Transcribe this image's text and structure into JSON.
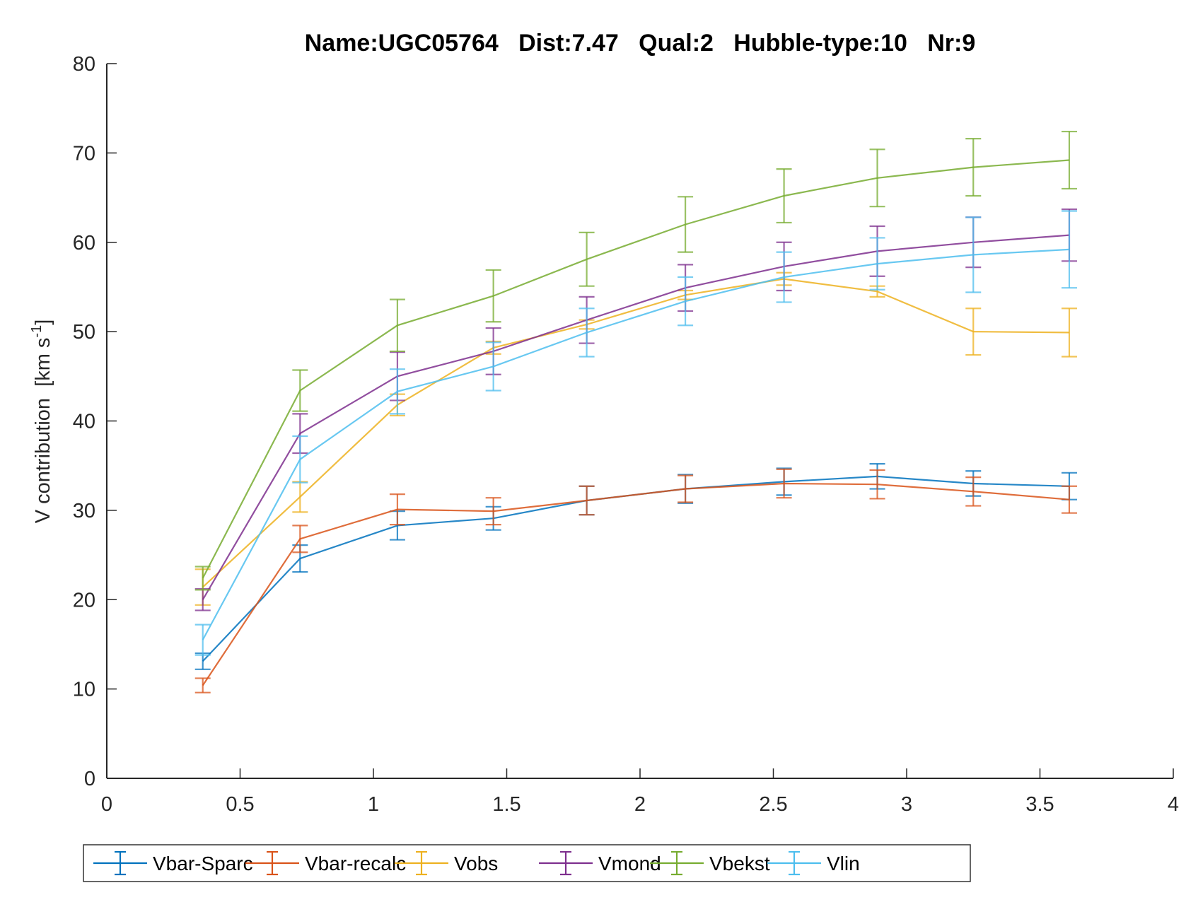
{
  "chart_data": {
    "type": "line",
    "title": "Name:UGC05764   Dist:7.47   Qual:2   Hubble-type:10   Nr:9",
    "title_fields": {
      "name": "UGC05764",
      "dist": "7.47",
      "qual": "2",
      "hubble_type": "10",
      "nr": "9"
    },
    "xlabel": "",
    "ylabel": "V contribution  [km s^-1]",
    "ylabel_parts": {
      "main": "V contribution  [km s",
      "sup": "-1",
      "close": "]"
    },
    "xlim": [
      0,
      4
    ],
    "ylim": [
      0,
      80
    ],
    "xticks": [
      0,
      0.5,
      1,
      1.5,
      2,
      2.5,
      3,
      3.5,
      4
    ],
    "xtick_labels": [
      "0",
      "0.5",
      "1",
      "1.5",
      "2",
      "2.5",
      "3",
      "3.5",
      "4"
    ],
    "yticks": [
      0,
      10,
      20,
      30,
      40,
      50,
      60,
      70,
      80
    ],
    "ytick_labels": [
      "0",
      "10",
      "20",
      "30",
      "40",
      "50",
      "60",
      "70",
      "80"
    ],
    "grid": false,
    "legend_position": "bottom-outside",
    "x": [
      0.36,
      0.725,
      1.09,
      1.45,
      1.8,
      2.17,
      2.54,
      2.89,
      3.25,
      3.61
    ],
    "series": [
      {
        "name": "Vbar-Sparc",
        "color": "#0072BD",
        "values": [
          13.1,
          24.6,
          28.3,
          29.1,
          31.1,
          32.4,
          33.2,
          33.8,
          33.0,
          32.7
        ],
        "errors": [
          0.9,
          1.5,
          1.6,
          1.3,
          1.6,
          1.6,
          1.5,
          1.4,
          1.4,
          1.5
        ]
      },
      {
        "name": "Vbar-recalc",
        "color": "#D95319",
        "values": [
          10.4,
          26.8,
          30.1,
          29.9,
          31.1,
          32.4,
          33.0,
          32.9,
          32.1,
          31.2
        ],
        "errors": [
          0.8,
          1.5,
          1.7,
          1.5,
          1.6,
          1.5,
          1.6,
          1.6,
          1.6,
          1.5
        ]
      },
      {
        "name": "Vobs",
        "color": "#EDB120",
        "values": [
          21.4,
          31.5,
          41.8,
          48.2,
          50.8,
          54.1,
          55.9,
          54.5,
          50.0,
          49.9
        ],
        "errors": [
          2.0,
          1.7,
          1.2,
          0.7,
          0.5,
          0.5,
          0.7,
          0.6,
          2.6,
          2.7
        ]
      },
      {
        "name": "Vmond",
        "color": "#7E2F8E",
        "values": [
          20.0,
          38.6,
          45.0,
          47.8,
          51.3,
          54.9,
          57.3,
          59.0,
          60.0,
          60.8
        ],
        "errors": [
          1.2,
          2.2,
          2.7,
          2.6,
          2.6,
          2.6,
          2.7,
          2.8,
          2.8,
          2.9
        ]
      },
      {
        "name": "Vbekst",
        "color": "#77AC30",
        "values": [
          22.4,
          43.4,
          50.7,
          54.0,
          58.1,
          62.0,
          65.2,
          67.2,
          68.4,
          69.2
        ],
        "errors": [
          1.3,
          2.3,
          2.9,
          2.9,
          3.0,
          3.1,
          3.0,
          3.2,
          3.2,
          3.2
        ]
      },
      {
        "name": "Vlin",
        "color": "#4DBEEE",
        "values": [
          15.5,
          35.7,
          43.3,
          46.1,
          49.9,
          53.4,
          56.1,
          57.6,
          58.6,
          59.2
        ],
        "errors": [
          1.7,
          2.6,
          2.5,
          2.7,
          2.7,
          2.7,
          2.8,
          2.9,
          4.2,
          4.3
        ]
      }
    ]
  },
  "legend": {
    "items": [
      {
        "label": "Vbar-Sparc",
        "color": "#0072BD"
      },
      {
        "label": "Vbar-recalc",
        "color": "#D95319"
      },
      {
        "label": "Vobs",
        "color": "#EDB120"
      },
      {
        "label": "Vmond",
        "color": "#7E2F8E"
      },
      {
        "label": "Vbekst",
        "color": "#77AC30"
      },
      {
        "label": "Vlin",
        "color": "#4DBEEE"
      }
    ]
  },
  "colors": {
    "axis": "#262626",
    "background": "#ffffff"
  }
}
